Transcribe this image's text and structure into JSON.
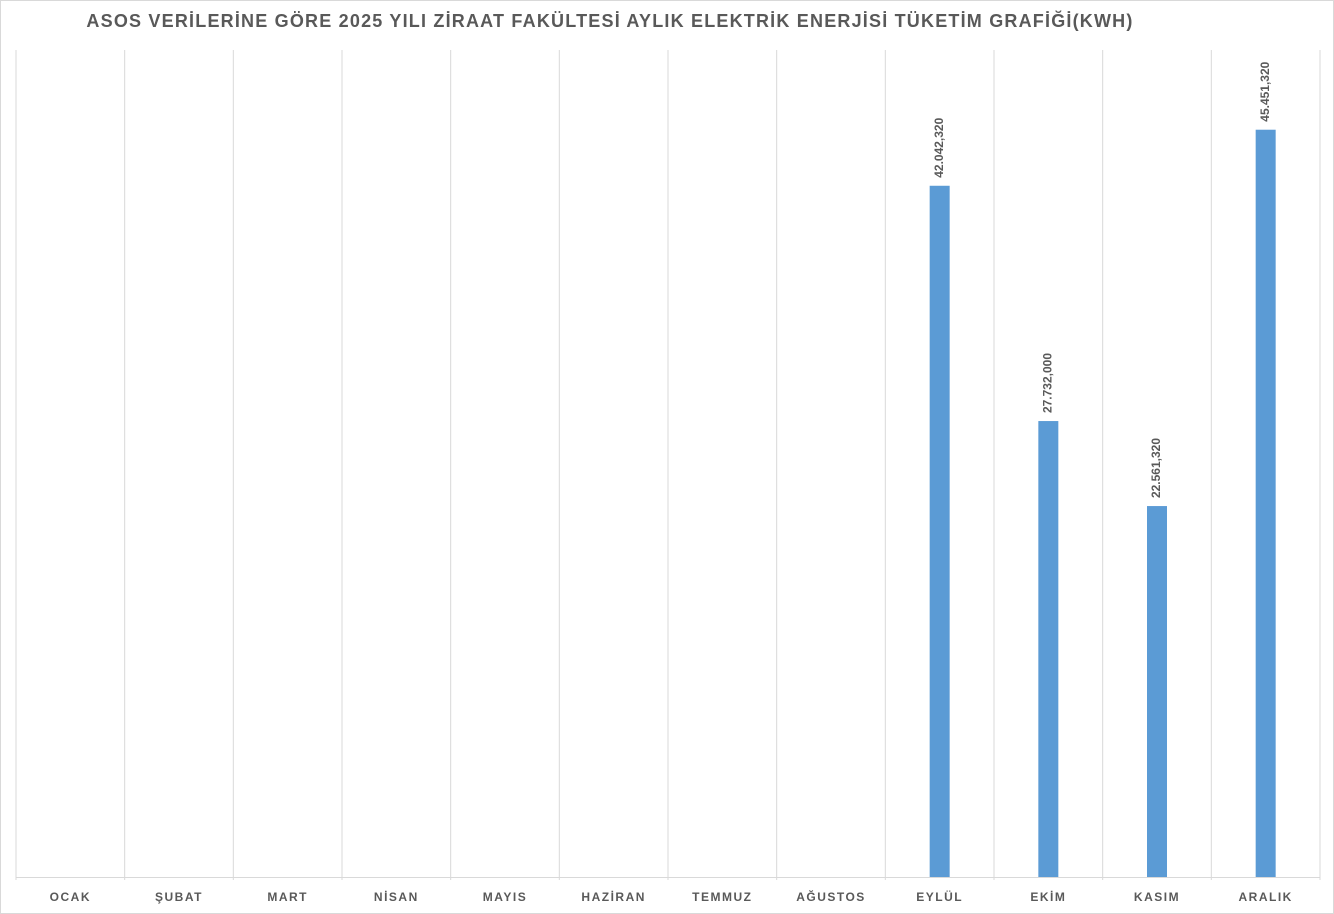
{
  "chart_data": {
    "type": "bar",
    "title": "ASOS VERİLERİNE GÖRE 2025 YILI ZİRAAT FAKÜLTESİ AYLIK ELEKTRİK ENERJİSİ TÜKETİM GRAFİĞİ(KWH)",
    "categories": [
      "OCAK",
      "ŞUBAT",
      "MART",
      "NİSAN",
      "MAYIS",
      "HAZİRAN",
      "TEMMUZ",
      "AĞUSTOS",
      "EYLÜL",
      "EKİM",
      "KASIM",
      "ARALIK"
    ],
    "values": [
      null,
      null,
      null,
      null,
      null,
      null,
      null,
      null,
      42042.32,
      27732,
      22561.32,
      45451.32
    ],
    "value_labels": [
      null,
      null,
      null,
      null,
      null,
      null,
      null,
      null,
      "42.042,320",
      "27.732,000",
      "22.561,320",
      "45.451,320"
    ],
    "color": "#5b9bd5",
    "ylim": [
      0,
      50300
    ]
  }
}
